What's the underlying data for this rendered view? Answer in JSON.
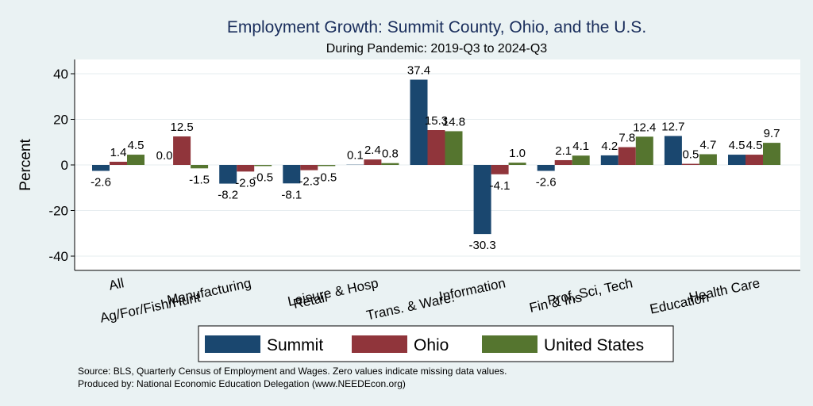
{
  "chart_data": {
    "type": "bar",
    "title": "Employment Growth: Summit County, Ohio, and the U.S.",
    "subtitle": "During Pandemic: 2019-Q3 to 2024-Q3",
    "ylabel": "Percent",
    "xlabel": "",
    "ylim": [
      -45,
      46
    ],
    "yticks": [
      -40,
      -20,
      0,
      20,
      40
    ],
    "grid": true,
    "legend_position": "bottom",
    "categories": [
      "All",
      "Ag/For/Fish/Hunt",
      "Manufacturing",
      "Retail",
      "Leisure & Hosp",
      "Trans. & Ware.",
      "Information",
      "Fin & Ins",
      "Prof, Sci, Tech",
      "Education",
      "Health Care"
    ],
    "series": [
      {
        "name": "Summit",
        "color": "#1a476f",
        "values": [
          -2.6,
          0.0,
          -8.2,
          -8.1,
          0.1,
          37.4,
          -30.3,
          -2.6,
          4.2,
          12.7,
          4.5
        ]
      },
      {
        "name": "Ohio",
        "color": "#90353b",
        "values": [
          1.4,
          12.5,
          -2.9,
          -2.3,
          2.4,
          15.3,
          -4.1,
          2.1,
          7.8,
          0.5,
          4.5
        ]
      },
      {
        "name": "United States",
        "color": "#55752f",
        "values": [
          4.5,
          -1.5,
          -0.5,
          -0.5,
          0.8,
          14.8,
          1.0,
          4.1,
          12.4,
          4.7,
          9.7
        ]
      }
    ],
    "data_labels": [
      [
        "-2.6",
        "0.0",
        "-8.2",
        "-8.1",
        "0.1",
        "37.4",
        "-30.3",
        "-2.6",
        "4.2",
        "12.7",
        "4.5"
      ],
      [
        "1.4",
        "12.5",
        "-2.9",
        "-2.3",
        "2.4",
        "15.3",
        "-4.1",
        "2.1",
        "7.8",
        "0.5",
        "4.5"
      ],
      [
        "4.5",
        "-1.5",
        "-0.5",
        "-0.5",
        "0.8",
        "14.8",
        "1.0",
        "4.1",
        "12.4",
        "4.7",
        "9.7"
      ]
    ],
    "notes": [
      "Source: BLS, Quarterly Census of Employment and Wages. Zero values indicate missing data values.",
      "Produced by: National Economic Education Delegation (www.NEEDEcon.org)"
    ]
  }
}
